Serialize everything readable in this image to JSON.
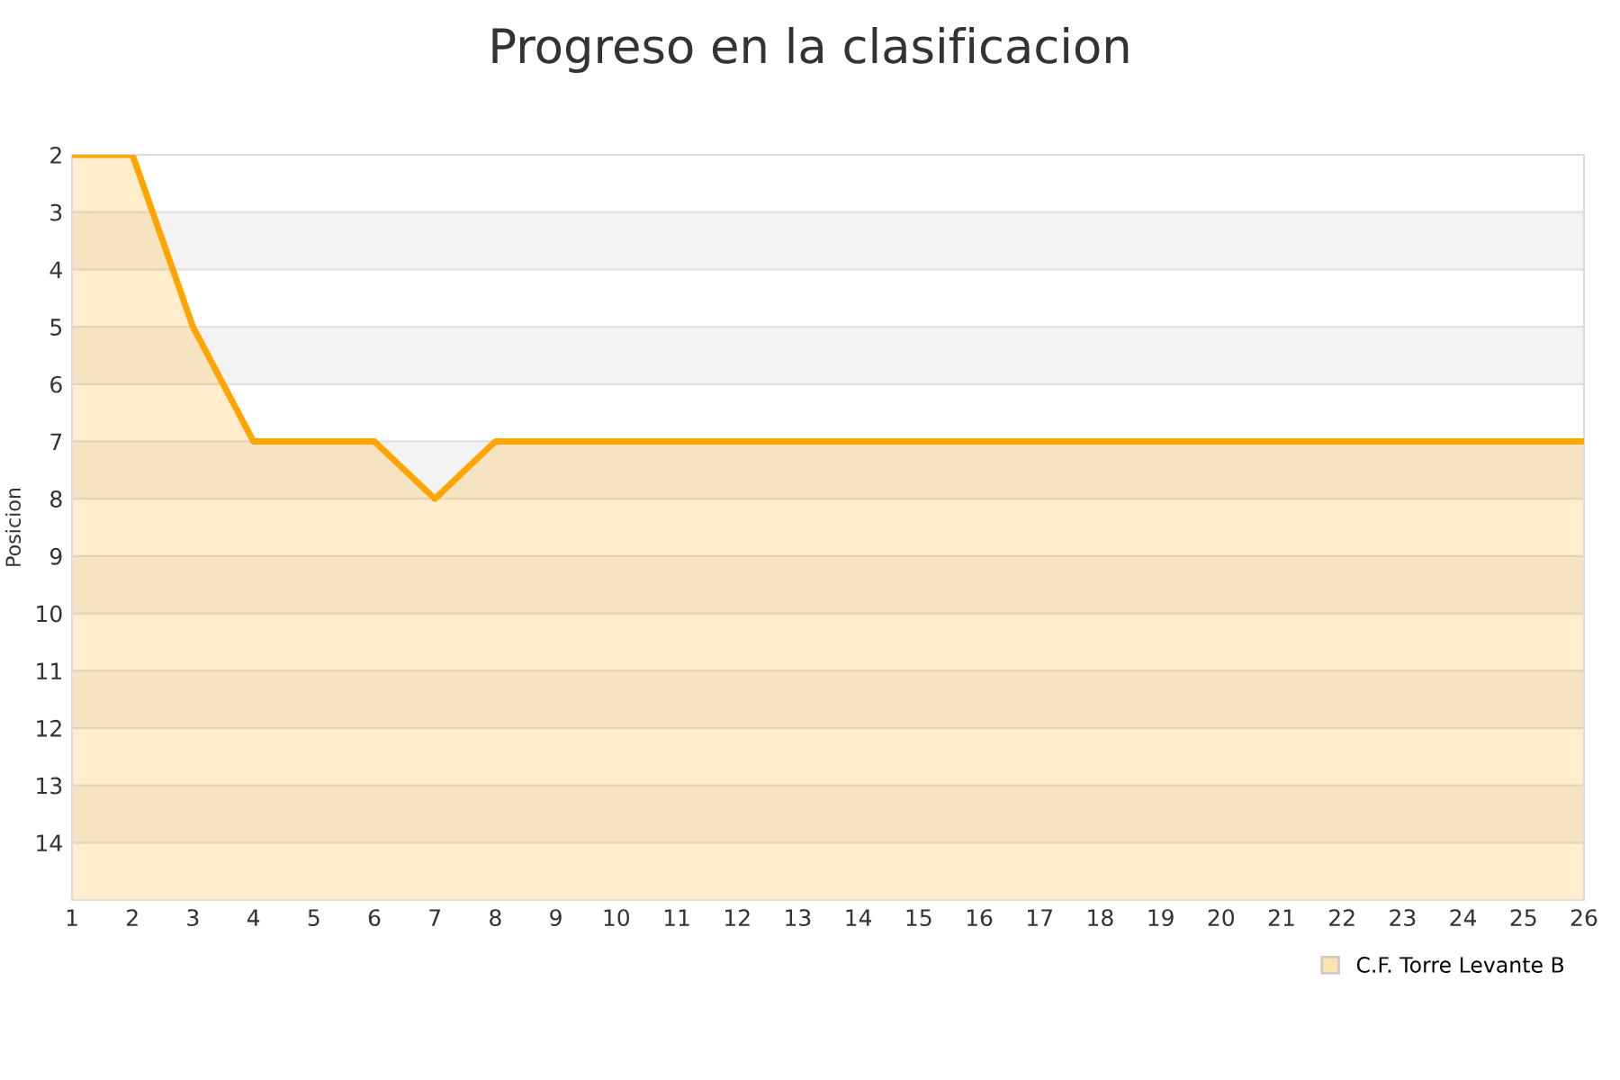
{
  "chart_data": {
    "type": "area",
    "title": "Progreso en la clasificacion",
    "ylabel": "Posicion",
    "x": [
      1,
      2,
      3,
      4,
      5,
      6,
      7,
      8,
      9,
      10,
      11,
      12,
      13,
      14,
      15,
      16,
      17,
      18,
      19,
      20,
      21,
      22,
      23,
      24,
      25,
      26
    ],
    "series": [
      {
        "name": "C.F. Torre Levante B",
        "color": "#ffa500",
        "values": [
          2,
          2,
          5,
          7,
          7,
          7,
          8,
          7,
          7,
          7,
          7,
          7,
          7,
          7,
          7,
          7,
          7,
          7,
          7,
          7,
          7,
          7,
          7,
          7,
          7,
          7
        ]
      }
    ],
    "xlim": [
      1,
      26
    ],
    "xticks": [
      1,
      2,
      3,
      4,
      5,
      6,
      7,
      8,
      9,
      10,
      11,
      12,
      13,
      14,
      15,
      16,
      17,
      18,
      19,
      20,
      21,
      22,
      23,
      24,
      25,
      26
    ],
    "ylim": [
      15,
      2
    ],
    "yticks": [
      2,
      3,
      4,
      5,
      6,
      7,
      8,
      9,
      10,
      11,
      12,
      13,
      14
    ],
    "bands": [
      {
        "axis": "y",
        "from": 3,
        "to": 4,
        "color": "#f3f3f3"
      },
      {
        "axis": "y",
        "from": 5,
        "to": 6,
        "color": "#f3f3f3"
      },
      {
        "axis": "y",
        "from": 7,
        "to": 8,
        "color": "#f3f3f3"
      },
      {
        "axis": "y",
        "from": 9,
        "to": 10,
        "color": "#f3f3f3"
      },
      {
        "axis": "y",
        "from": 11,
        "to": 12,
        "color": "#f3f3f3"
      },
      {
        "axis": "y",
        "from": 13,
        "to": 14,
        "color": "#f3f3f3"
      }
    ],
    "grid": "y",
    "legend": "bottom right",
    "marker": "none",
    "line_style": "solid"
  }
}
